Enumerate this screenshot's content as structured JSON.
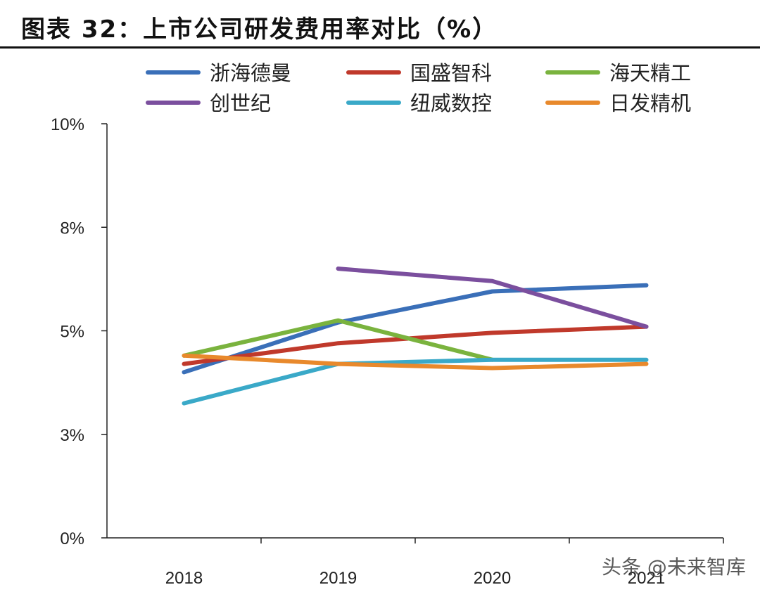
{
  "title": "图表 32：上市公司研发费用率对比（%）",
  "watermark": "头条 @未来智库",
  "chart_data": {
    "type": "line",
    "categories": [
      "2018",
      "2019",
      "2020",
      "2021"
    ],
    "y_ticks": [
      0,
      2.5,
      5,
      7.5,
      10
    ],
    "y_tick_labels": [
      "0%",
      "3%",
      "5%",
      "8%",
      "10%"
    ],
    "ylim": [
      0,
      10
    ],
    "grid": false,
    "legend_position": "top",
    "series": [
      {
        "name": "浙海德曼",
        "color": "#3a6fb8",
        "values": [
          4.0,
          5.2,
          5.95,
          6.1
        ]
      },
      {
        "name": "国盛智科",
        "color": "#c0392b",
        "values": [
          4.2,
          4.7,
          4.95,
          5.1
        ]
      },
      {
        "name": "海天精工",
        "color": "#7ab33e",
        "values": [
          4.4,
          5.25,
          4.3,
          null
        ]
      },
      {
        "name": "创世纪",
        "color": "#7b4f9e",
        "values": [
          null,
          6.5,
          6.2,
          5.1
        ]
      },
      {
        "name": "纽威数控",
        "color": "#3aa9c8",
        "values": [
          3.25,
          4.2,
          4.3,
          4.3
        ]
      },
      {
        "name": "日发精机",
        "color": "#e8892c",
        "values": [
          4.4,
          4.2,
          4.1,
          4.2
        ]
      }
    ]
  }
}
